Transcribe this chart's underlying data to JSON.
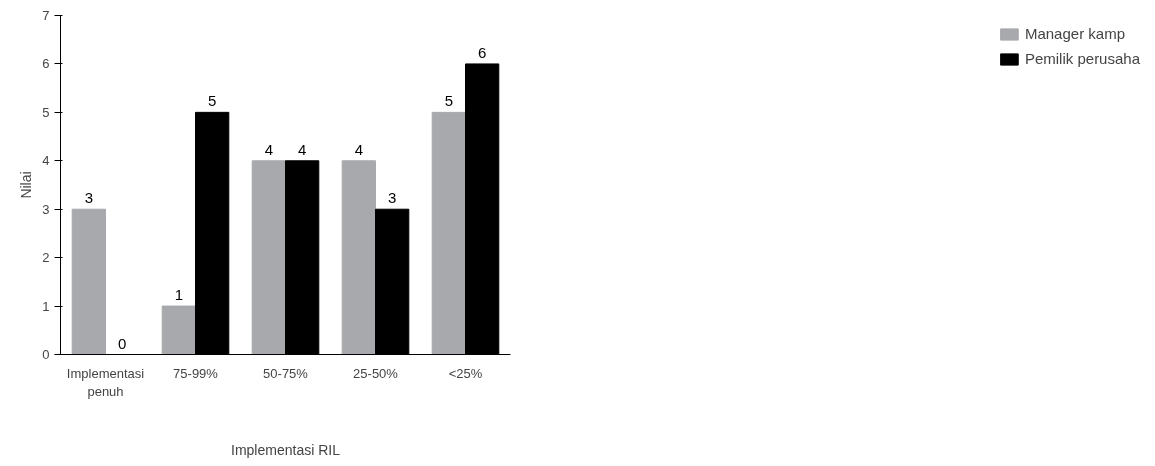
{
  "chart_data": {
    "type": "bar",
    "xlabel": "Implementasi RIL",
    "ylabel": "Nilai",
    "categories": [
      "Implementasi\npenuh",
      "75-99%",
      "50-75%",
      "25-50%",
      "<25%"
    ],
    "series": [
      {
        "name": "Manager kamp",
        "color": "#a7a9ac",
        "values": [
          3,
          1,
          4,
          4,
          5
        ]
      },
      {
        "name": "Pemilik perusaha",
        "color": "#000000",
        "values": [
          0,
          5,
          4,
          3,
          6
        ]
      }
    ],
    "ylim": [
      0,
      7
    ],
    "yticks": [
      0,
      1,
      2,
      3,
      4,
      5,
      6,
      7
    ],
    "grid": false,
    "legend": "right",
    "data_labels": true
  }
}
